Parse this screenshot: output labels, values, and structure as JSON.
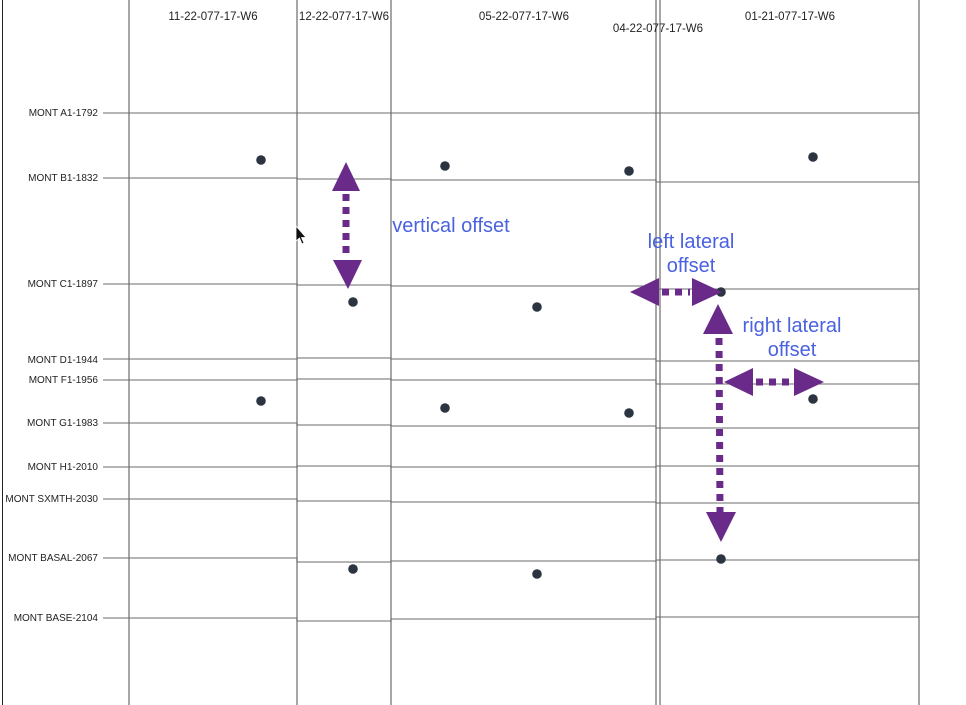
{
  "wells": [
    {
      "id": "w1",
      "label": "11-22-077-17-W6"
    },
    {
      "id": "w2",
      "label": "12-22-077-17-W6"
    },
    {
      "id": "w3",
      "label": "05-22-077-17-W6"
    },
    {
      "id": "w4",
      "label": "04-22-077-17-W6"
    },
    {
      "id": "w5",
      "label": "01-21-077-17-W6"
    }
  ],
  "formations": [
    {
      "label": "MONT A1-1792"
    },
    {
      "label": "MONT B1-1832"
    },
    {
      "label": "MONT C1-1897"
    },
    {
      "label": "MONT D1-1944"
    },
    {
      "label": "MONT F1-1956"
    },
    {
      "label": "MONT G1-1983"
    },
    {
      "label": "MONT H1-2010"
    },
    {
      "label": "MONT SXMTH-2030"
    },
    {
      "label": "MONT BASAL-2067"
    },
    {
      "label": "MONT BASE-2104"
    }
  ],
  "annotations": {
    "vertical_offset": "vertical offset",
    "left_lateral_line1": "left lateral",
    "left_lateral_line2": "offset",
    "right_lateral_line1": "right lateral",
    "right_lateral_line2": "offset"
  },
  "colors": {
    "grid_line": "#6b6b6b",
    "column_line": "#777777",
    "dot": "#2b3440",
    "arrow": "#6a2a8a",
    "annotation_text": "#4a62e0",
    "label_text": "#222222"
  }
}
